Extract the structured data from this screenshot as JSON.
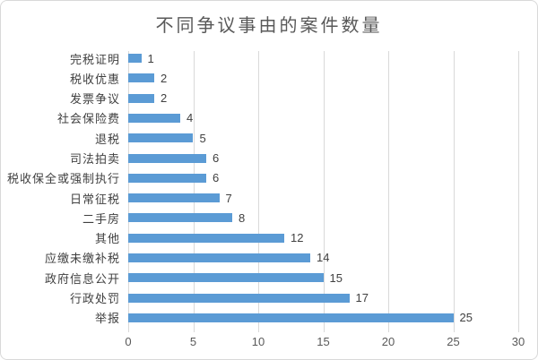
{
  "chart_data": {
    "type": "bar",
    "orientation": "horizontal",
    "title": "不同争议事由的案件数量",
    "categories": [
      "完税证明",
      "税收优惠",
      "发票争议",
      "社会保险费",
      "退税",
      "司法拍卖",
      "税收保全或强制执行",
      "日常征税",
      "二手房",
      "其他",
      "应缴未缴补税",
      "政府信息公开",
      "行政处罚",
      "举报"
    ],
    "values": [
      1,
      2,
      2,
      4,
      5,
      6,
      6,
      7,
      8,
      12,
      14,
      15,
      17,
      25
    ],
    "xlabel": "",
    "ylabel": "",
    "xlim": [
      0,
      30
    ],
    "x_ticks": [
      0,
      5,
      10,
      15,
      20,
      25,
      30
    ],
    "data_labels_shown": true,
    "legend": "none",
    "grid": "vertical",
    "colors": {
      "bar": "#5b9bd5",
      "gridline": "#d9d9d9",
      "title_text": "#595959",
      "category_text": "#404040",
      "value_text": "#404040",
      "tick_text": "#595959",
      "chart_border": "#d9d9d9",
      "background": "#ffffff"
    }
  }
}
